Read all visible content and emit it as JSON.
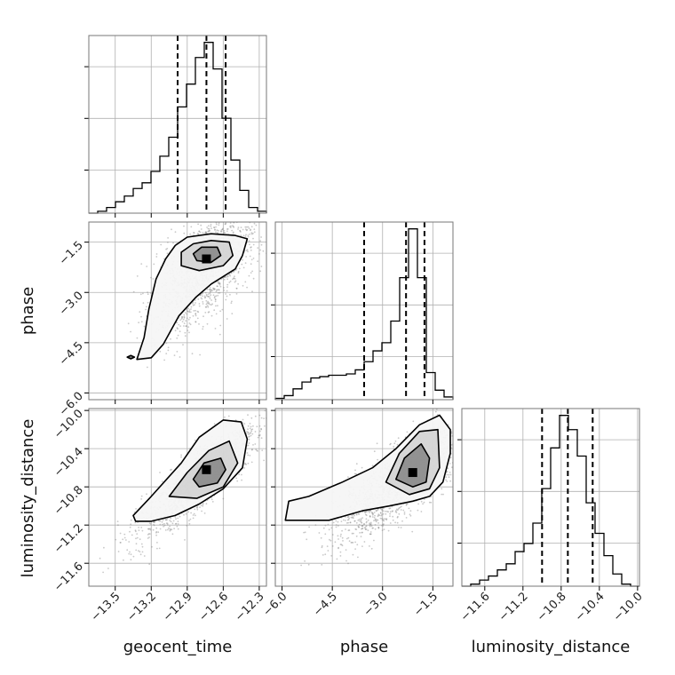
{
  "chart_data": {
    "type": "corner",
    "parameters": [
      "geocent_time",
      "phase",
      "luminosity_distance"
    ],
    "grid": true,
    "axes": {
      "geocent_time": {
        "lim": [
          -13.72,
          -12.24
        ],
        "ticks": [
          -13.5,
          -13.2,
          -12.9,
          -12.6,
          -12.3
        ],
        "tick_labels": [
          "−13.5",
          "−13.2",
          "−12.9",
          "−12.6",
          "−12.3"
        ]
      },
      "phase": {
        "lim": [
          -6.2,
          -0.9
        ],
        "ticks": [
          -6.0,
          -4.5,
          -3.0,
          -1.5
        ],
        "tick_labels": [
          "−6.0",
          "−4.5",
          "−3.0",
          "−1.5"
        ]
      },
      "luminosity_distance": {
        "lim": [
          -11.84,
          -9.98
        ],
        "ticks": [
          -11.6,
          -11.2,
          -10.8,
          -10.4,
          -10.0
        ],
        "tick_labels": [
          "−11.6",
          "−11.2",
          "−10.8",
          "−10.4",
          "−10.0"
        ]
      }
    },
    "histograms": {
      "geocent_time": {
        "bin_edges": [
          -13.72,
          -13.646,
          -13.572,
          -13.498,
          -13.424,
          -13.35,
          -13.276,
          -13.202,
          -13.128,
          -13.054,
          -12.98,
          -12.906,
          -12.832,
          -12.758,
          -12.684,
          -12.61,
          -12.536,
          -12.462,
          -12.388,
          -12.314,
          -12.24
        ],
        "counts": [
          0,
          1,
          3,
          6,
          9,
          13,
          16,
          22,
          30,
          40,
          56,
          68,
          82,
          90,
          76,
          50,
          28,
          12,
          3,
          1
        ],
        "quantiles": [
          -12.98,
          -12.74,
          -12.58
        ]
      },
      "phase": {
        "bin_edges": [
          -6.2,
          -5.935,
          -5.67,
          -5.405,
          -5.14,
          -4.875,
          -4.61,
          -4.345,
          -4.08,
          -3.815,
          -3.55,
          -3.285,
          -3.02,
          -2.755,
          -2.49,
          -2.225,
          -1.96,
          -1.695,
          -1.43,
          -1.165,
          -0.9
        ],
        "counts": [
          1,
          3,
          8,
          13,
          16,
          17,
          18,
          18,
          19,
          22,
          28,
          36,
          42,
          58,
          90,
          126,
          90,
          20,
          7,
          2
        ],
        "quantiles": [
          -3.55,
          -2.3,
          -1.75
        ]
      },
      "luminosity_distance": {
        "bin_edges": [
          -11.84,
          -11.747,
          -11.654,
          -11.561,
          -11.468,
          -11.375,
          -11.282,
          -11.189,
          -11.096,
          -11.003,
          -10.91,
          -10.817,
          -10.724,
          -10.631,
          -10.538,
          -10.445,
          -10.352,
          -10.259,
          -10.166,
          -10.073,
          -9.98
        ],
        "counts": [
          0,
          1,
          3,
          5,
          8,
          11,
          17,
          21,
          31,
          48,
          68,
          84,
          77,
          64,
          41,
          26,
          15,
          6,
          1,
          0
        ],
        "quantiles": [
          -11.0,
          -10.73,
          -10.47
        ]
      }
    },
    "pairs": [
      {
        "x": "geocent_time",
        "y": "phase",
        "mean": [
          -12.75,
          -2.25
        ],
        "std": [
          0.22,
          0.95
        ],
        "corr": 0.6,
        "peak": [
          -12.74,
          -2.0
        ],
        "contours": [
          [
            [
              -13.0,
              -1.6
            ],
            [
              -12.9,
              -1.35
            ],
            [
              -12.7,
              -1.25
            ],
            [
              -12.5,
              -1.3
            ],
            [
              -12.4,
              -1.4
            ],
            [
              -12.44,
              -1.9
            ],
            [
              -12.5,
              -2.3
            ],
            [
              -12.7,
              -2.75
            ],
            [
              -12.83,
              -3.15
            ],
            [
              -12.97,
              -3.7
            ],
            [
              -13.1,
              -4.55
            ],
            [
              -13.2,
              -4.95
            ],
            [
              -13.32,
              -5.0
            ],
            [
              -13.26,
              -4.35
            ],
            [
              -13.22,
              -3.5
            ],
            [
              -13.16,
              -2.6
            ],
            [
              -13.08,
              -2.0
            ],
            [
              -13.0,
              -1.6
            ]
          ],
          [
            [
              -12.95,
              -1.8
            ],
            [
              -12.85,
              -1.55
            ],
            [
              -12.7,
              -1.45
            ],
            [
              -12.55,
              -1.5
            ],
            [
              -12.52,
              -1.9
            ],
            [
              -12.6,
              -2.2
            ],
            [
              -12.8,
              -2.35
            ],
            [
              -12.95,
              -2.2
            ],
            [
              -12.95,
              -1.8
            ]
          ],
          [
            [
              -12.85,
              -1.85
            ],
            [
              -12.78,
              -1.65
            ],
            [
              -12.65,
              -1.65
            ],
            [
              -12.62,
              -1.9
            ],
            [
              -12.7,
              -2.1
            ],
            [
              -12.82,
              -2.05
            ],
            [
              -12.85,
              -1.85
            ]
          ],
          [
            [
              -13.4,
              -4.93
            ],
            [
              -13.37,
              -4.88
            ],
            [
              -13.34,
              -4.93
            ],
            [
              -13.37,
              -4.98
            ],
            [
              -13.4,
              -4.93
            ]
          ]
        ]
      },
      {
        "x": "geocent_time",
        "y": "luminosity_distance",
        "mean": [
          -12.8,
          -10.72
        ],
        "std": [
          0.25,
          0.3
        ],
        "corr": 0.85,
        "peak": [
          -12.74,
          -10.62
        ],
        "contours": [
          [
            [
              -13.35,
              -11.1
            ],
            [
              -13.2,
              -10.9
            ],
            [
              -12.95,
              -10.55
            ],
            [
              -12.8,
              -10.28
            ],
            [
              -12.6,
              -10.1
            ],
            [
              -12.45,
              -10.12
            ],
            [
              -12.4,
              -10.3
            ],
            [
              -12.44,
              -10.6
            ],
            [
              -12.6,
              -10.82
            ],
            [
              -12.8,
              -10.98
            ],
            [
              -13.0,
              -11.1
            ],
            [
              -13.2,
              -11.16
            ],
            [
              -13.33,
              -11.16
            ],
            [
              -13.35,
              -11.1
            ]
          ],
          [
            [
              -13.05,
              -10.9
            ],
            [
              -12.9,
              -10.65
            ],
            [
              -12.72,
              -10.42
            ],
            [
              -12.55,
              -10.32
            ],
            [
              -12.48,
              -10.55
            ],
            [
              -12.6,
              -10.8
            ],
            [
              -12.82,
              -10.92
            ],
            [
              -13.05,
              -10.9
            ]
          ],
          [
            [
              -12.85,
              -10.72
            ],
            [
              -12.76,
              -10.55
            ],
            [
              -12.62,
              -10.5
            ],
            [
              -12.58,
              -10.62
            ],
            [
              -12.65,
              -10.76
            ],
            [
              -12.8,
              -10.8
            ],
            [
              -12.85,
              -10.72
            ]
          ]
        ]
      },
      {
        "x": "phase",
        "y": "luminosity_distance",
        "mean": [
          -2.5,
          -10.75
        ],
        "std": [
          1.0,
          0.3
        ],
        "corr": 0.8,
        "peak": [
          -2.1,
          -10.65
        ],
        "contours": [
          [
            [
              -5.9,
              -11.15
            ],
            [
              -5.8,
              -10.95
            ],
            [
              -5.2,
              -10.9
            ],
            [
              -4.2,
              -10.75
            ],
            [
              -3.3,
              -10.6
            ],
            [
              -2.6,
              -10.4
            ],
            [
              -1.9,
              -10.15
            ],
            [
              -1.3,
              -10.05
            ],
            [
              -0.98,
              -10.2
            ],
            [
              -0.98,
              -10.45
            ],
            [
              -1.2,
              -10.75
            ],
            [
              -1.6,
              -10.9
            ],
            [
              -2.1,
              -10.95
            ],
            [
              -2.8,
              -11.0
            ],
            [
              -3.6,
              -11.05
            ],
            [
              -4.6,
              -11.15
            ],
            [
              -5.9,
              -11.15
            ]
          ],
          [
            [
              -2.9,
              -10.75
            ],
            [
              -2.5,
              -10.45
            ],
            [
              -1.9,
              -10.22
            ],
            [
              -1.35,
              -10.2
            ],
            [
              -1.3,
              -10.6
            ],
            [
              -1.6,
              -10.82
            ],
            [
              -2.2,
              -10.88
            ],
            [
              -2.9,
              -10.75
            ]
          ],
          [
            [
              -2.6,
              -10.72
            ],
            [
              -2.35,
              -10.5
            ],
            [
              -1.85,
              -10.35
            ],
            [
              -1.6,
              -10.5
            ],
            [
              -1.7,
              -10.75
            ],
            [
              -2.1,
              -10.8
            ],
            [
              -2.6,
              -10.72
            ]
          ]
        ]
      }
    ]
  }
}
